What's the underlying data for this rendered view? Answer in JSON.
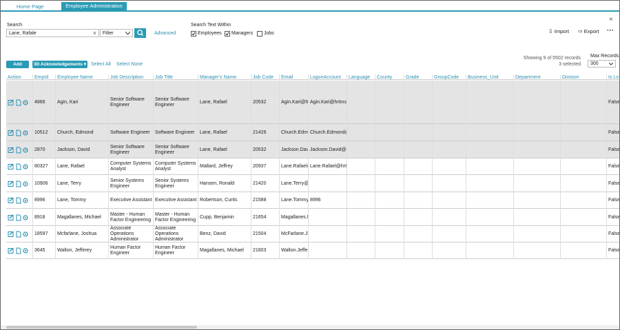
{
  "tabs": [
    "Home Page",
    "Employee Administration"
  ],
  "search": {
    "label": "Search",
    "value": "Lane, Rafale",
    "filter": "Filter",
    "advanced": "Advanced"
  },
  "search_within": {
    "label": "Search Text Within",
    "options": [
      {
        "label": "Employees",
        "checked": true
      },
      {
        "label": "Managers",
        "checked": true
      },
      {
        "label": "Jobs",
        "checked": false
      }
    ]
  },
  "toolbar": {
    "import": "Import",
    "export": "Export"
  },
  "actions": {
    "add": "Add",
    "acknowledgements": "3D Acknowledgements",
    "select_all": "Select All",
    "select_none": "Select None"
  },
  "status": {
    "records": "Showing 9 of 5502 records",
    "selected": "3 selected",
    "max_records_label": "Max Records",
    "max_records": "300"
  },
  "table": {
    "columns": [
      "Action",
      "EmpId",
      "Employee Name",
      "Job Description",
      "Job Title",
      "Manager's Name",
      "Job Code",
      "Email",
      "LogonAccount",
      "Language",
      "County",
      "Grade",
      "GroupCode",
      "Business_Unit",
      "Department",
      "Division",
      "Is Lo"
    ],
    "rows": [
      {
        "selected": true,
        "empid": "4866",
        "name": "Agin, Kari",
        "job_description": "Senior Software Engineer",
        "job_title": "Senior Software Engineer",
        "manager": "Lane, Rafael",
        "job_code": "20532",
        "email": "Agin.Kari@hrt",
        "logon": "Agin.Kari@hrtms.c",
        "is_lo": "False"
      },
      {
        "selected": true,
        "empid": "10512",
        "name": "Church, Edmond",
        "job_description": "Software Engineer",
        "job_title": "Software Engineer",
        "manager": "Lane, Rafael",
        "job_code": "21426",
        "email": "Church.Edmond@",
        "logon": "Church.Edmond@l",
        "is_lo": "False"
      },
      {
        "selected": true,
        "empid": "2870",
        "name": "Jackson, David",
        "job_description": "Senior Software Engineer",
        "job_title": "Senior Software Engineer",
        "manager": "Lane, Rafael",
        "job_code": "20532",
        "email": "Jackson.Davi",
        "logon": "Jackson.David@hr",
        "is_lo": "False"
      },
      {
        "selected": false,
        "empid": "80327",
        "name": "Lane, Rafael",
        "job_description": "Computer Systems Analyst",
        "job_title": "Computer Systems Analyst",
        "manager": "Mallard, Jeffrey",
        "job_code": "20937",
        "email": "Lane.Rafael@",
        "logon": "Lane.Rafael@hrtm",
        "is_lo": "False"
      },
      {
        "selected": false,
        "empid": "10906",
        "name": "Lane, Terry",
        "job_description": "Senior Systems Engineer",
        "job_title": "Senior Systems Engineer",
        "manager": "Hansen, Ronald",
        "job_code": "21420",
        "email": "Lane.Terry@",
        "is_lo": "False"
      },
      {
        "selected": false,
        "empid": "8996",
        "name": "Lane, Tommy",
        "job_description": "Executive Assistant",
        "job_title": "Executive Assistant",
        "manager": "Robertson, Curtis",
        "job_code": "21588",
        "email": "Lane.Tommy",
        "logon": "8996",
        "is_lo": "False"
      },
      {
        "selected": false,
        "empid": "8918",
        "name": "Magallanes, Michael",
        "job_description": "Master - Human Factor Engineering",
        "job_title": "Master - Human Factor Engineering",
        "manager": "Cupp, Benjamin",
        "job_code": "21654",
        "email": "Magallanes.M",
        "is_lo": "False"
      },
      {
        "selected": false,
        "empid": "18597",
        "name": "Mcfarlane, Joshua",
        "job_description": "Associate Operations Administrator",
        "job_title": "Associate Operations Administrator",
        "manager": "Benz, David",
        "job_code": "21504",
        "email": "McFarlane.Jo",
        "is_lo": "False"
      },
      {
        "selected": false,
        "empid": "3645",
        "name": "Walton, Jefferey",
        "job_description": "Human Factor Engineer",
        "job_title": "Human Factor Engineer",
        "manager": "Magallanes, Michael",
        "job_code": "21603",
        "email": "Walton.Jeffer",
        "is_lo": "False"
      }
    ]
  }
}
